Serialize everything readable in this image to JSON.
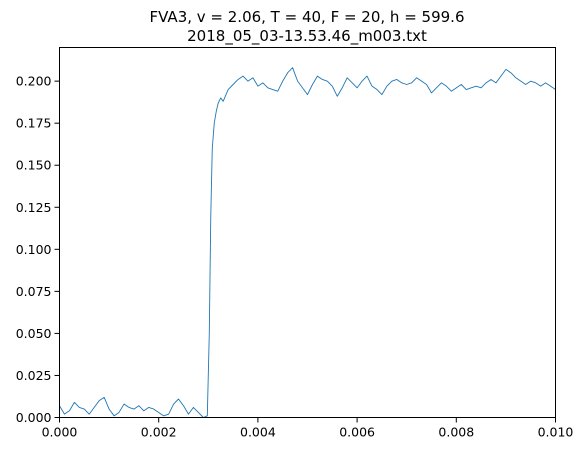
{
  "chart_data": {
    "type": "line",
    "title": "FVA3, v = 2.06, T = 40, F = 20, h = 599.6",
    "subtitle": "2018_05_03-13.53.46_m003.txt",
    "xlabel": "",
    "ylabel": "",
    "xlim": [
      0.0,
      0.01
    ],
    "ylim": [
      0.0,
      0.22
    ],
    "xticks": [
      0.0,
      0.002,
      0.004,
      0.006,
      0.008,
      0.01
    ],
    "xtick_labels": [
      "0.000",
      "0.002",
      "0.004",
      "0.006",
      "0.008",
      "0.010"
    ],
    "yticks": [
      0.0,
      0.025,
      0.05,
      0.075,
      0.1,
      0.125,
      0.15,
      0.175,
      0.2
    ],
    "ytick_labels": [
      "0.000",
      "0.025",
      "0.050",
      "0.075",
      "0.100",
      "0.125",
      "0.150",
      "0.175",
      "0.200"
    ],
    "grid": false,
    "line_color": "#1f77b4",
    "series": [
      {
        "x": [
          0.0,
          0.0001,
          0.0002,
          0.0003,
          0.0004,
          0.0005,
          0.0006,
          0.0007,
          0.0008,
          0.0009,
          0.001,
          0.0011,
          0.0012,
          0.0013,
          0.0014,
          0.0015,
          0.0016,
          0.0017,
          0.0018,
          0.0019,
          0.002,
          0.0021,
          0.0022,
          0.0023,
          0.0024,
          0.0025,
          0.0026,
          0.0027,
          0.0028,
          0.0029,
          0.00298,
          0.00302,
          0.00305,
          0.00308,
          0.00312,
          0.00316,
          0.0032,
          0.00325,
          0.0033,
          0.0034,
          0.0035,
          0.0036,
          0.0037,
          0.0038,
          0.0039,
          0.004,
          0.0041,
          0.0042,
          0.0043,
          0.0044,
          0.0045,
          0.0046,
          0.0047,
          0.0048,
          0.0049,
          0.005,
          0.0051,
          0.0052,
          0.0053,
          0.0054,
          0.0055,
          0.0056,
          0.0057,
          0.0058,
          0.0059,
          0.006,
          0.0061,
          0.0062,
          0.0063,
          0.0064,
          0.0065,
          0.0066,
          0.0067,
          0.0068,
          0.0069,
          0.007,
          0.0071,
          0.0072,
          0.0073,
          0.0074,
          0.0075,
          0.0076,
          0.0077,
          0.0078,
          0.0079,
          0.008,
          0.0081,
          0.0082,
          0.0083,
          0.0084,
          0.0085,
          0.0086,
          0.0087,
          0.0088,
          0.0089,
          0.009,
          0.0091,
          0.0092,
          0.0093,
          0.0094,
          0.0095,
          0.0096,
          0.0097,
          0.0098,
          0.0099,
          0.01
        ],
        "y": [
          0.007,
          0.002,
          0.004,
          0.009,
          0.006,
          0.005,
          0.002,
          0.006,
          0.01,
          0.012,
          0.005,
          0.001,
          0.003,
          0.008,
          0.006,
          0.005,
          0.007,
          0.004,
          0.006,
          0.005,
          0.003,
          0.001,
          0.002,
          0.008,
          0.011,
          0.007,
          0.002,
          0.006,
          0.003,
          0.0,
          0.001,
          0.05,
          0.12,
          0.16,
          0.175,
          0.182,
          0.187,
          0.19,
          0.188,
          0.195,
          0.198,
          0.201,
          0.203,
          0.2,
          0.202,
          0.197,
          0.199,
          0.196,
          0.195,
          0.194,
          0.2,
          0.205,
          0.208,
          0.2,
          0.196,
          0.192,
          0.198,
          0.203,
          0.201,
          0.2,
          0.197,
          0.191,
          0.196,
          0.202,
          0.199,
          0.196,
          0.2,
          0.203,
          0.197,
          0.195,
          0.192,
          0.197,
          0.2,
          0.201,
          0.199,
          0.198,
          0.199,
          0.202,
          0.2,
          0.198,
          0.193,
          0.196,
          0.199,
          0.197,
          0.194,
          0.196,
          0.198,
          0.195,
          0.196,
          0.197,
          0.196,
          0.199,
          0.201,
          0.199,
          0.203,
          0.207,
          0.205,
          0.202,
          0.2,
          0.198,
          0.2,
          0.199,
          0.197,
          0.199,
          0.197,
          0.195
        ]
      }
    ]
  }
}
